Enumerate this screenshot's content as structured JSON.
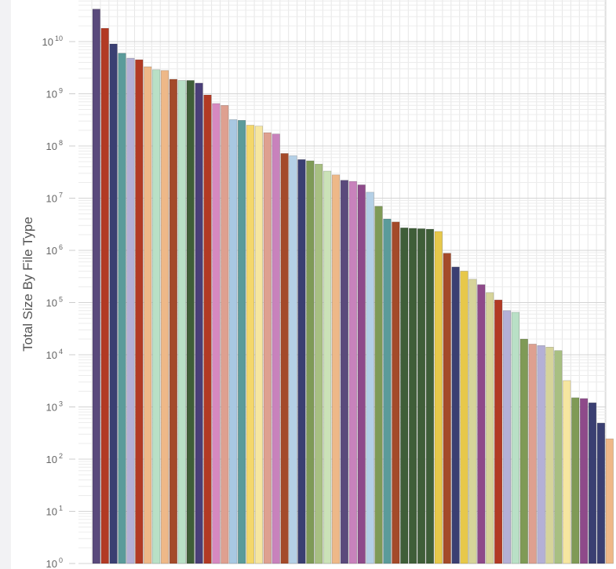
{
  "chart_data": {
    "type": "bar",
    "title": "",
    "xlabel": "",
    "ylabel": "Total Size By File Type",
    "yscale": "log",
    "ylim": [
      1,
      100000000000
    ],
    "y_tick_labels": [
      {
        "base": "10",
        "exp": "0"
      },
      {
        "base": "10",
        "exp": "1"
      },
      {
        "base": "10",
        "exp": "2"
      },
      {
        "base": "10",
        "exp": "3"
      },
      {
        "base": "10",
        "exp": "4"
      },
      {
        "base": "10",
        "exp": "5"
      },
      {
        "base": "10",
        "exp": "6"
      },
      {
        "base": "10",
        "exp": "7"
      },
      {
        "base": "10",
        "exp": "8"
      },
      {
        "base": "10",
        "exp": "9"
      },
      {
        "base": "10",
        "exp": "10"
      }
    ],
    "grid": true,
    "legend": "none",
    "values": [
      42000000000,
      18000000000,
      9000000000,
      6000000000,
      4800000000,
      4500000000,
      3300000000,
      2900000000,
      2800000000,
      1900000000,
      1800000000,
      1800000000,
      1600000000,
      950000000,
      650000000,
      600000000,
      320000000,
      310000000,
      250000000,
      240000000,
      180000000,
      170000000,
      72000000,
      65000000,
      55000000,
      52000000,
      45000000,
      33000000,
      28000000,
      22000000,
      21000000,
      18000000,
      13000000,
      7000000,
      4000000,
      3500000,
      2700000,
      2650000,
      2600000,
      2550000,
      2300000,
      880000,
      480000,
      400000,
      280000,
      220000,
      155000,
      112000,
      70000,
      65000,
      20000,
      16000,
      15000,
      14000,
      12000,
      3200,
      1500,
      1450,
      1200,
      490,
      245
    ],
    "colors": [
      "#5a4a7c",
      "#b23a24",
      "#3a3f72",
      "#5b9b9a",
      "#b4b0d6",
      "#b23a24",
      "#eeb888",
      "#b9e0c6",
      "#eeb888",
      "#a44a2a",
      "#b9e0c6",
      "#3f5e38",
      "#4a3f78",
      "#b23a24",
      "#d689c0",
      "#dea090",
      "#a8c8e2",
      "#5b9b9a",
      "#f4d76a",
      "#f6e6a0",
      "#dea090",
      "#c882bc",
      "#a44a2a",
      "#b4d0e6",
      "#3a3f72",
      "#7f9a56",
      "#a8bf82",
      "#cbe2b8",
      "#eeb888",
      "#5a4a7c",
      "#c882bc",
      "#8e4a8a",
      "#b4d0e6",
      "#7f9a56",
      "#5b9b9a",
      "#a44a2a",
      "#3f5e38",
      "#3f5e38",
      "#3f5e38",
      "#3f5e38",
      "#e7c84a",
      "#a44a2a",
      "#3a3f72",
      "#e7c84a",
      "#d6d49a",
      "#8e4a8a",
      "#d6d49a",
      "#b23a24",
      "#b4b0d6",
      "#b9e0c6",
      "#7f9a56",
      "#dea090",
      "#b4b0d6",
      "#d6d49a",
      "#a8bf82",
      "#f6e6a0",
      "#7f9a56",
      "#8e4a8a",
      "#3a3f72",
      "#3a3f72",
      "#eeb888"
    ]
  }
}
